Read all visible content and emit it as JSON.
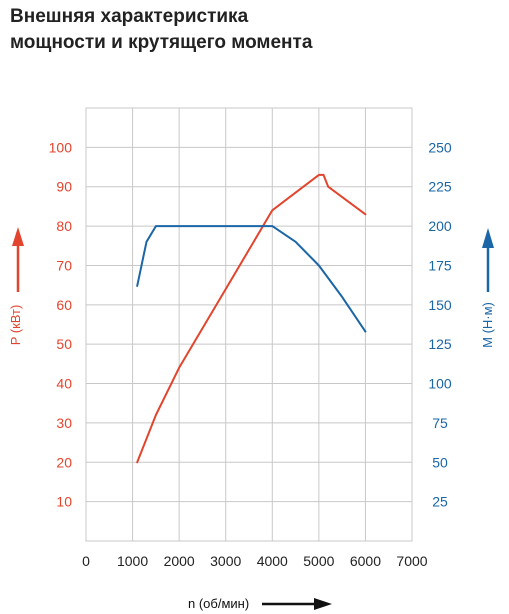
{
  "title_lines": [
    "Внешняя характеристика",
    "мощности и крутящего момента"
  ],
  "chart_data": {
    "type": "line",
    "x": {
      "label": "n (об/мин)",
      "range": [
        0,
        7000
      ],
      "ticks": [
        0,
        1000,
        2000,
        3000,
        4000,
        5000,
        6000,
        7000
      ]
    },
    "y_left": {
      "label": "P (кВт)",
      "range": [
        0,
        110
      ],
      "ticks": [
        10,
        20,
        30,
        40,
        50,
        60,
        70,
        80,
        90,
        100
      ],
      "color": "#e2452d"
    },
    "y_right": {
      "label": "M (Н·м)",
      "range": [
        0,
        275
      ],
      "ticks": [
        25,
        50,
        75,
        100,
        125,
        150,
        175,
        200,
        225,
        250
      ],
      "color": "#1a66a6"
    },
    "grid": true,
    "grid_color": "#c8c8c8",
    "series": [
      {
        "axis": "left",
        "color": "#e2452d",
        "points": [
          [
            1100,
            20
          ],
          [
            1500,
            32
          ],
          [
            2000,
            44
          ],
          [
            3000,
            64
          ],
          [
            4000,
            84
          ],
          [
            4500,
            88.5
          ],
          [
            5000,
            93
          ],
          [
            5100,
            93
          ],
          [
            5200,
            90
          ],
          [
            6000,
            83
          ]
        ]
      },
      {
        "axis": "right",
        "color": "#1a66a6",
        "points": [
          [
            1100,
            162
          ],
          [
            1300,
            190
          ],
          [
            1500,
            200
          ],
          [
            2000,
            200
          ],
          [
            3000,
            200
          ],
          [
            4000,
            200
          ],
          [
            4500,
            190
          ],
          [
            5000,
            175
          ],
          [
            5500,
            155
          ],
          [
            6000,
            133
          ]
        ]
      }
    ]
  }
}
